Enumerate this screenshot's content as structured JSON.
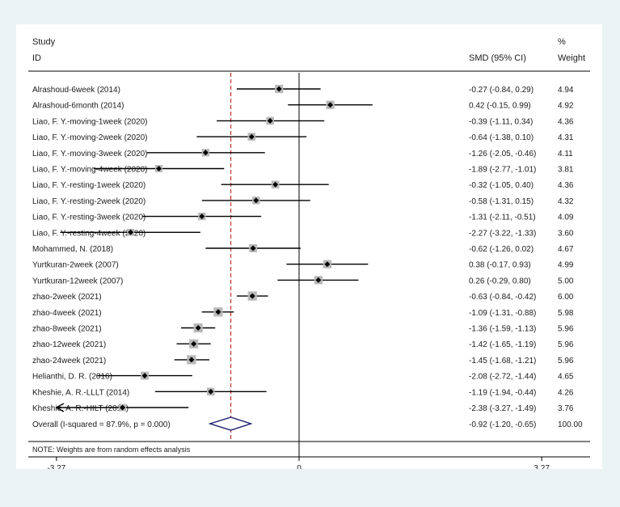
{
  "chart_data": {
    "type": "forest",
    "header": {
      "study_line1": "Study",
      "study_line2": "ID",
      "ci_label": "SMD (95% CI)",
      "weight_line1": "%",
      "weight_line2": "Weight"
    },
    "x_axis": {
      "range": [
        -3.9,
        3.9
      ],
      "ticks": [
        -3.27,
        0,
        3.27
      ],
      "tick_labels": [
        "-3.27",
        "0",
        "3.27"
      ]
    },
    "colors": {
      "null_line": "#000000",
      "overall_line": "#c0392b",
      "box": "#b9b9b9",
      "diamond": "#1a1a6e"
    },
    "studies": [
      {
        "label": "Alrashoud-6week (2014)",
        "est": -0.27,
        "lo": -0.84,
        "hi": 0.29,
        "ci": "-0.27 (-0.84, 0.29)",
        "weight": "4.94"
      },
      {
        "label": "Alrashoud-6month (2014)",
        "est": 0.42,
        "lo": -0.15,
        "hi": 0.99,
        "ci": "0.42 (-0.15, 0.99)",
        "weight": "4.92"
      },
      {
        "label": "Liao, F. Y.-moving-1week (2020)",
        "est": -0.39,
        "lo": -1.11,
        "hi": 0.34,
        "ci": "-0.39 (-1.11, 0.34)",
        "weight": "4.36"
      },
      {
        "label": "Liao, F. Y.-moving-2week (2020)",
        "est": -0.64,
        "lo": -1.38,
        "hi": 0.1,
        "ci": "-0.64 (-1.38, 0.10)",
        "weight": "4.31"
      },
      {
        "label": "Liao, F. Y.-moving-3week (2020)",
        "est": -1.26,
        "lo": -2.05,
        "hi": -0.46,
        "ci": "-1.26 (-2.05, -0.46)",
        "weight": "4.11"
      },
      {
        "label": "Liao, F. Y.-moving-4week (2020)",
        "est": -1.89,
        "lo": -2.77,
        "hi": -1.01,
        "ci": "-1.89 (-2.77, -1.01)",
        "weight": "3.81"
      },
      {
        "label": "Liao, F. Y.-resting-1week (2020)",
        "est": -0.32,
        "lo": -1.05,
        "hi": 0.4,
        "ci": "-0.32 (-1.05, 0.40)",
        "weight": "4.36"
      },
      {
        "label": "Liao, F. Y.-resting-2week (2020)",
        "est": -0.58,
        "lo": -1.31,
        "hi": 0.15,
        "ci": "-0.58 (-1.31, 0.15)",
        "weight": "4.32"
      },
      {
        "label": "Liao, F. Y.-resting-3week (2020)",
        "est": -1.31,
        "lo": -2.11,
        "hi": -0.51,
        "ci": "-1.31 (-2.11, -0.51)",
        "weight": "4.09"
      },
      {
        "label": "Liao, F. Y.-resting-4week (2020)",
        "est": -2.27,
        "lo": -3.22,
        "hi": -1.33,
        "ci": "-2.27 (-3.22, -1.33)",
        "weight": "3.60"
      },
      {
        "label": "Mohammed, N. (2018)",
        "est": -0.62,
        "lo": -1.26,
        "hi": 0.02,
        "ci": "-0.62 (-1.26, 0.02)",
        "weight": "4.67"
      },
      {
        "label": "Yurtkuran-2week (2007)",
        "est": 0.38,
        "lo": -0.17,
        "hi": 0.93,
        "ci": "0.38 (-0.17, 0.93)",
        "weight": "4.99"
      },
      {
        "label": "Yurtkuran-12week (2007)",
        "est": 0.26,
        "lo": -0.29,
        "hi": 0.8,
        "ci": "0.26 (-0.29, 0.80)",
        "weight": "5.00"
      },
      {
        "label": "zhao-2week (2021)",
        "est": -0.63,
        "lo": -0.84,
        "hi": -0.42,
        "ci": "-0.63 (-0.84, -0.42)",
        "weight": "6.00"
      },
      {
        "label": "zhao-4week (2021)",
        "est": -1.09,
        "lo": -1.31,
        "hi": -0.88,
        "ci": "-1.09 (-1.31, -0.88)",
        "weight": "5.98"
      },
      {
        "label": "zhao-8week (2021)",
        "est": -1.36,
        "lo": -1.59,
        "hi": -1.13,
        "ci": "-1.36 (-1.59, -1.13)",
        "weight": "5.96"
      },
      {
        "label": "zhao-12week (2021)",
        "est": -1.42,
        "lo": -1.65,
        "hi": -1.19,
        "ci": "-1.42 (-1.65, -1.19)",
        "weight": "5.96"
      },
      {
        "label": "zhao-24week (2021)",
        "est": -1.45,
        "lo": -1.68,
        "hi": -1.21,
        "ci": "-1.45 (-1.68, -1.21)",
        "weight": "5.96"
      },
      {
        "label": "Helianthi, D. R. (2016)",
        "est": -2.08,
        "lo": -2.72,
        "hi": -1.44,
        "ci": "-2.08 (-2.72, -1.44)",
        "weight": "4.65"
      },
      {
        "label": "Kheshie, A. R.-LLLT (2014)",
        "est": -1.19,
        "lo": -1.94,
        "hi": -0.44,
        "ci": "-1.19 (-1.94, -0.44)",
        "weight": "4.26"
      },
      {
        "label": "Kheshie, A. R.-HILT (2014)",
        "est": -2.38,
        "lo": -3.27,
        "hi": -1.49,
        "ci": "-2.38 (-3.27, -1.49)",
        "weight": "3.76",
        "arrow_left": true
      }
    ],
    "overall": {
      "label": "Overall  (I-squared = 87.9%, p = 0.000)",
      "est": -0.92,
      "lo": -1.2,
      "hi": -0.65,
      "ci": "-0.92 (-1.20, -0.65)",
      "weight": "100.00"
    },
    "note": "NOTE: Weights are from random effects analysis"
  }
}
